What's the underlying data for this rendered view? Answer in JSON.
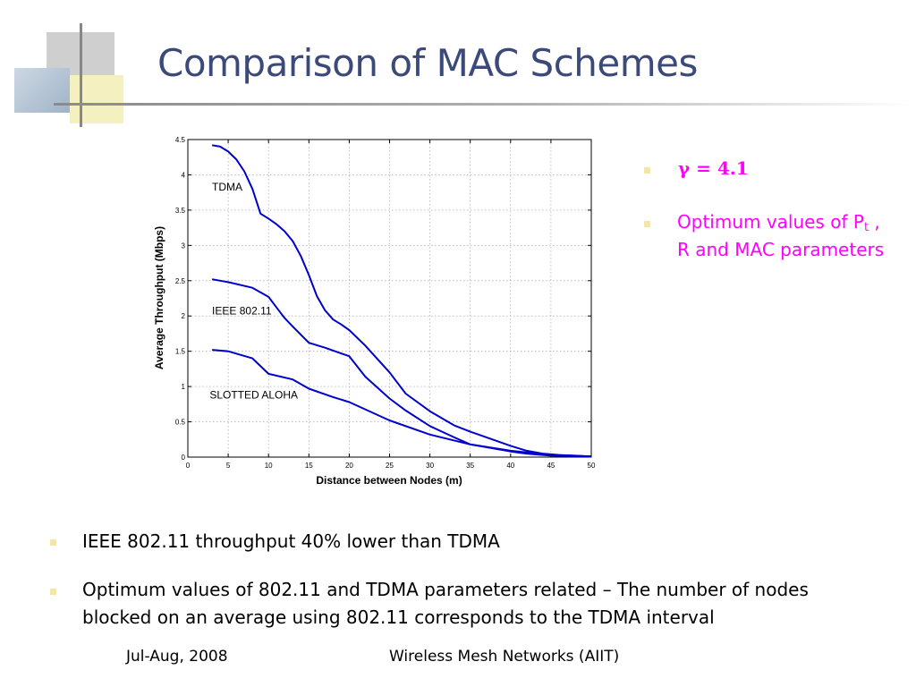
{
  "slide": {
    "title": "Comparison of MAC Schemes",
    "right_bullets": [
      {
        "text": "γ = 4.1"
      },
      {
        "text_before_sub": "Optimum values of P",
        "sub": "t",
        "text_after_sub": " , R and MAC parameters"
      }
    ],
    "bottom_bullets": [
      "IEEE 802.11 throughput 40% lower than TDMA",
      "Optimum values of 802.11 and TDMA parameters related – The number of nodes blocked on an average using 802.11 corresponds to the TDMA interval"
    ],
    "footer": {
      "date": "Jul-Aug, 2008",
      "course": "Wireless Mesh Networks (AIIT)"
    },
    "colors": {
      "title": "#3b4a78",
      "highlight": "#ff00ff",
      "bullet": "#f2e7a6",
      "series": "#0000cc"
    }
  },
  "chart_data": {
    "type": "line",
    "xlabel": "Distance between Nodes (m)",
    "ylabel": "Average Throughput (Mbps)",
    "xlim": [
      0,
      50
    ],
    "ylim": [
      0,
      4.5
    ],
    "xticks": [
      0,
      5,
      10,
      15,
      20,
      25,
      30,
      35,
      40,
      45,
      50
    ],
    "yticks": [
      0,
      0.5,
      1,
      1.5,
      2,
      2.5,
      3,
      3.5,
      4,
      4.5
    ],
    "grid": true,
    "series": [
      {
        "name": "TDMA",
        "x": [
          3,
          4,
          5,
          6,
          7,
          8,
          9,
          10,
          11,
          12,
          13,
          14,
          15,
          16,
          17,
          18,
          19,
          20,
          22,
          25,
          27,
          30,
          33,
          35,
          38,
          40,
          42,
          44,
          46,
          48,
          50
        ],
        "y": [
          4.42,
          4.4,
          4.33,
          4.22,
          4.05,
          3.8,
          3.45,
          3.38,
          3.3,
          3.2,
          3.06,
          2.85,
          2.58,
          2.28,
          2.08,
          1.95,
          1.88,
          1.8,
          1.58,
          1.2,
          0.9,
          0.65,
          0.45,
          0.36,
          0.24,
          0.16,
          0.09,
          0.05,
          0.03,
          0.02,
          0.01
        ]
      },
      {
        "name": "IEEE 802.11",
        "x": [
          3,
          5,
          8,
          10,
          11,
          12,
          13,
          15,
          17,
          20,
          22,
          25,
          27,
          30,
          33,
          35,
          38,
          40,
          42,
          45,
          50
        ],
        "y": [
          2.52,
          2.48,
          2.4,
          2.27,
          2.12,
          1.97,
          1.85,
          1.62,
          1.55,
          1.43,
          1.14,
          0.83,
          0.66,
          0.44,
          0.28,
          0.18,
          0.12,
          0.08,
          0.05,
          0.02,
          0.01
        ]
      },
      {
        "name": "SLOTTED ALOHA",
        "x": [
          3,
          5,
          8,
          10,
          13,
          15,
          18,
          20,
          25,
          30,
          35,
          40,
          45,
          50
        ],
        "y": [
          1.52,
          1.5,
          1.4,
          1.18,
          1.1,
          0.97,
          0.85,
          0.78,
          0.52,
          0.32,
          0.18,
          0.09,
          0.03,
          0.01
        ]
      }
    ],
    "annotations": [
      {
        "text": "TDMA",
        "x": 3,
        "y": 3.78
      },
      {
        "text": "IEEE 802.11",
        "x": 3,
        "y": 2.02
      },
      {
        "text": "SLOTTED ALOHA",
        "x": 2.7,
        "y": 0.83
      }
    ]
  }
}
